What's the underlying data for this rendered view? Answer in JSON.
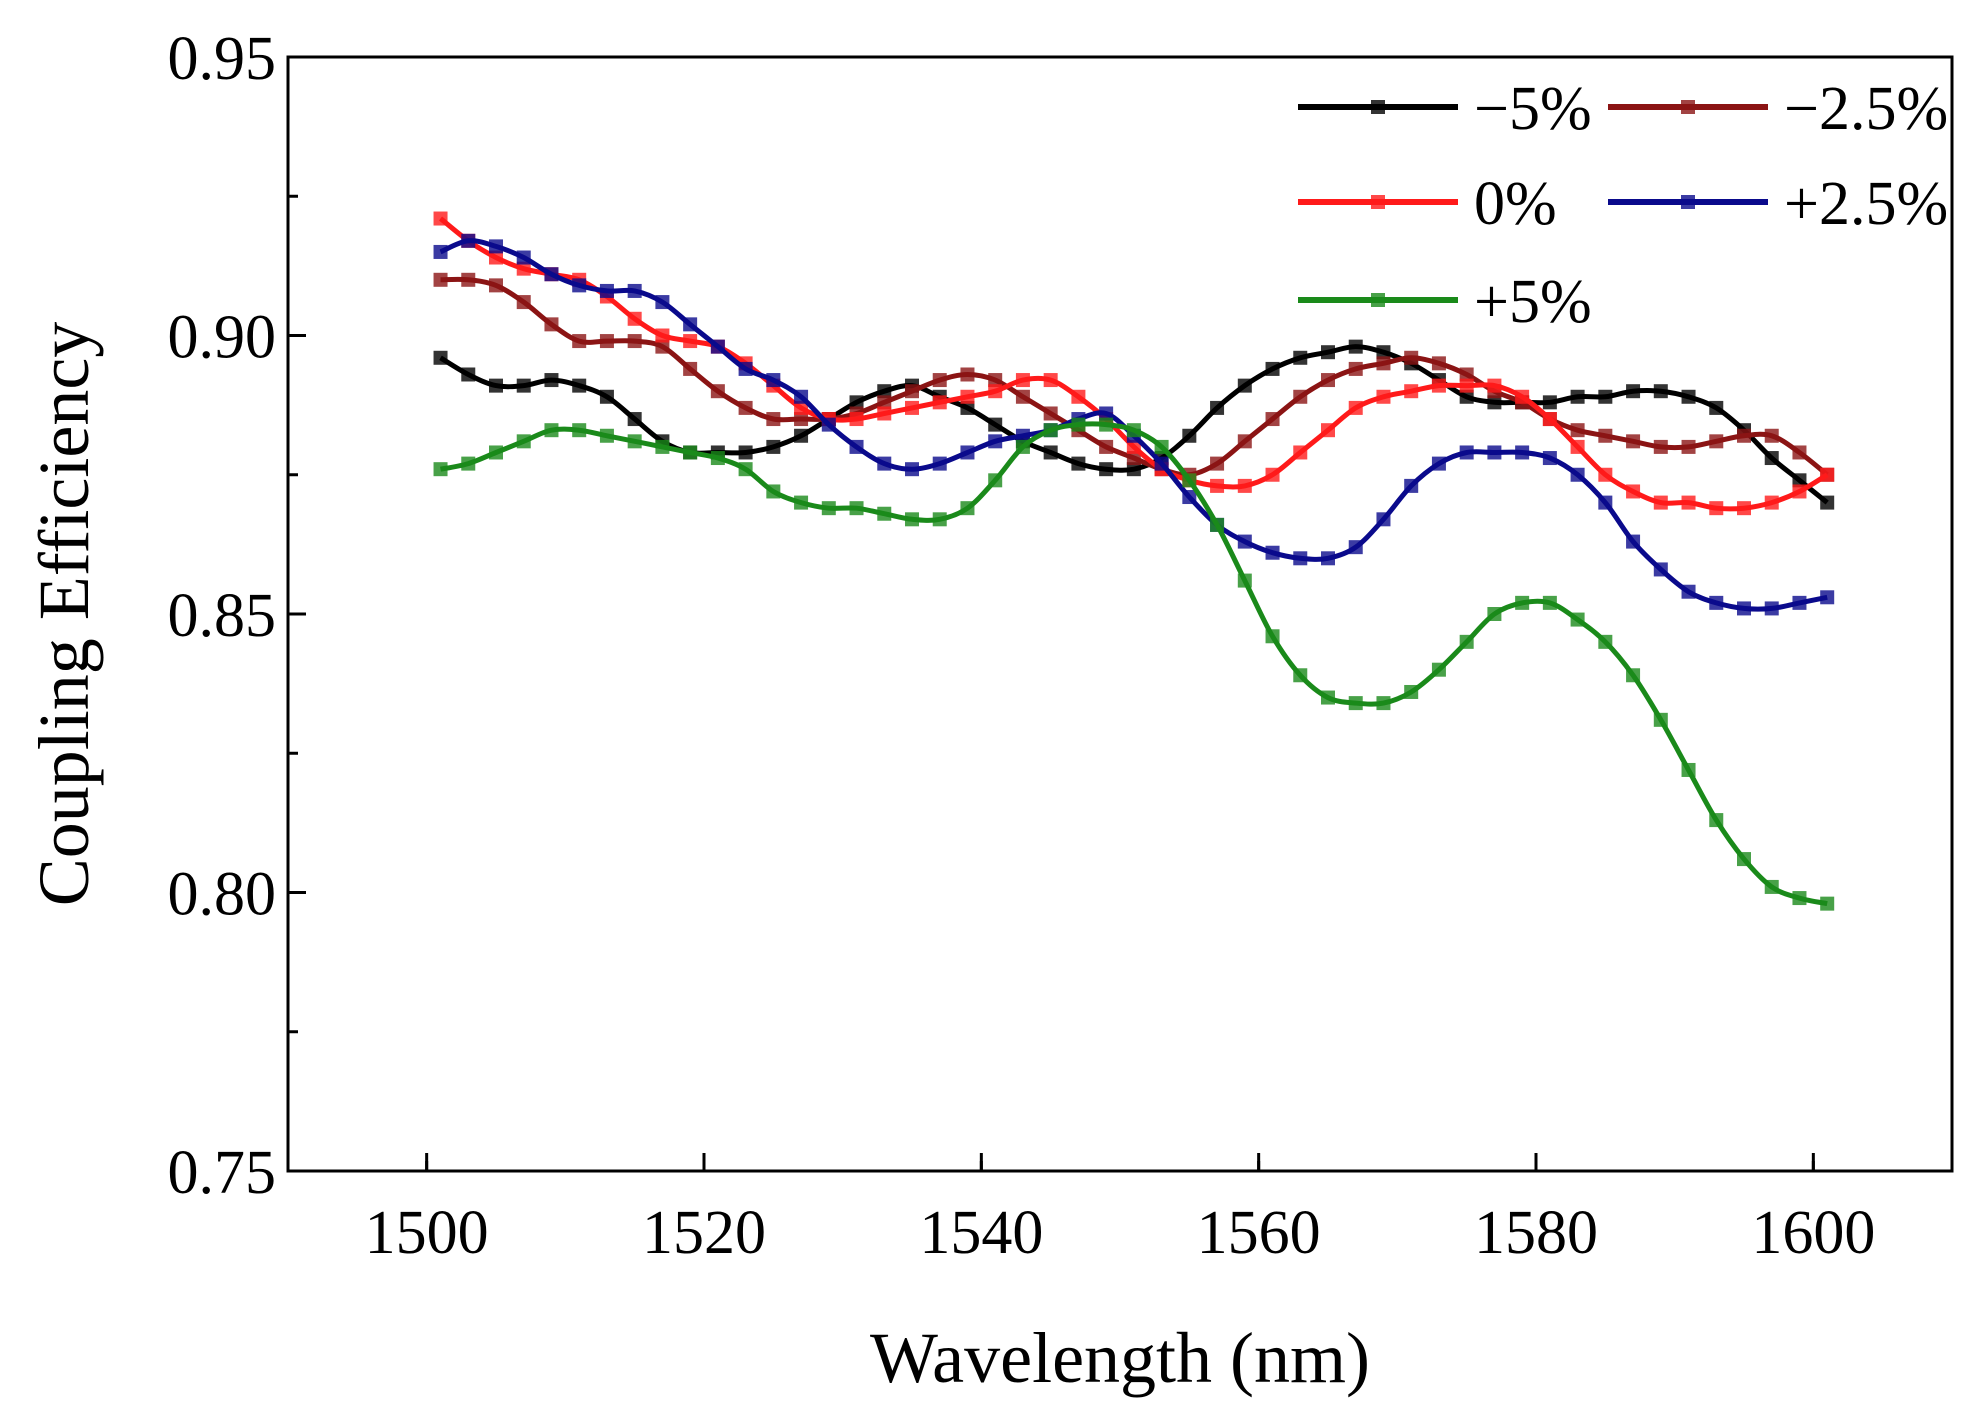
{
  "chart_data": {
    "type": "line",
    "title": "",
    "xlabel": "Wavelength (nm)",
    "ylabel": "Coupling Efficiency",
    "xlim": [
      1490,
      1610
    ],
    "ylim": [
      0.75,
      0.95
    ],
    "xticks": [
      1500,
      1520,
      1540,
      1560,
      1580,
      1600
    ],
    "xtick_labels": [
      "1500",
      "1520",
      "1540",
      "1560",
      "1580",
      "1600"
    ],
    "yticks": [
      0.75,
      0.8,
      0.85,
      0.9,
      0.95
    ],
    "ytick_labels": [
      "0.75",
      "0.80",
      "0.85",
      "0.90",
      "0.95"
    ],
    "grid": false,
    "legend_position": "top-right",
    "x": [
      1501,
      1503,
      1505,
      1507,
      1509,
      1511,
      1513,
      1515,
      1517,
      1519,
      1521,
      1523,
      1525,
      1527,
      1529,
      1531,
      1533,
      1535,
      1537,
      1539,
      1541,
      1543,
      1545,
      1547,
      1549,
      1551,
      1553,
      1555,
      1557,
      1559,
      1561,
      1563,
      1565,
      1567,
      1569,
      1571,
      1573,
      1575,
      1577,
      1579,
      1581,
      1583,
      1585,
      1587,
      1589,
      1591,
      1593,
      1595,
      1597,
      1599,
      1601
    ],
    "series": [
      {
        "name": "−5%",
        "color": "#000000",
        "values": [
          0.896,
          0.893,
          0.891,
          0.891,
          0.892,
          0.891,
          0.889,
          0.885,
          0.881,
          0.879,
          0.879,
          0.879,
          0.88,
          0.882,
          0.885,
          0.888,
          0.89,
          0.891,
          0.889,
          0.887,
          0.884,
          0.881,
          0.879,
          0.877,
          0.876,
          0.876,
          0.878,
          0.882,
          0.887,
          0.891,
          0.894,
          0.896,
          0.897,
          0.898,
          0.897,
          0.895,
          0.892,
          0.889,
          0.888,
          0.888,
          0.888,
          0.889,
          0.889,
          0.89,
          0.89,
          0.889,
          0.887,
          0.883,
          0.878,
          0.874,
          0.87
        ]
      },
      {
        "name": "−2.5%",
        "color": "#8b1414",
        "values": [
          0.91,
          0.91,
          0.909,
          0.906,
          0.902,
          0.899,
          0.899,
          0.899,
          0.898,
          0.894,
          0.89,
          0.887,
          0.885,
          0.885,
          0.885,
          0.886,
          0.888,
          0.89,
          0.892,
          0.893,
          0.892,
          0.889,
          0.886,
          0.883,
          0.88,
          0.878,
          0.876,
          0.875,
          0.877,
          0.881,
          0.885,
          0.889,
          0.892,
          0.894,
          0.895,
          0.896,
          0.895,
          0.893,
          0.89,
          0.888,
          0.885,
          0.883,
          0.882,
          0.881,
          0.88,
          0.88,
          0.881,
          0.882,
          0.882,
          0.879,
          0.875
        ]
      },
      {
        "name": "0%",
        "color": "#ff1a1a",
        "values": [
          0.921,
          0.917,
          0.914,
          0.912,
          0.911,
          0.91,
          0.907,
          0.903,
          0.9,
          0.899,
          0.898,
          0.895,
          0.891,
          0.887,
          0.885,
          0.885,
          0.886,
          0.887,
          0.888,
          0.889,
          0.89,
          0.892,
          0.892,
          0.889,
          0.885,
          0.88,
          0.876,
          0.874,
          0.873,
          0.873,
          0.875,
          0.879,
          0.883,
          0.887,
          0.889,
          0.89,
          0.891,
          0.891,
          0.891,
          0.889,
          0.885,
          0.88,
          0.875,
          0.872,
          0.87,
          0.87,
          0.869,
          0.869,
          0.87,
          0.872,
          0.875
        ]
      },
      {
        "name": "+2.5%",
        "color": "#0a0a8c",
        "values": [
          0.915,
          0.917,
          0.916,
          0.914,
          0.911,
          0.909,
          0.908,
          0.908,
          0.906,
          0.902,
          0.898,
          0.894,
          0.892,
          0.889,
          0.884,
          0.88,
          0.877,
          0.876,
          0.877,
          0.879,
          0.881,
          0.882,
          0.883,
          0.885,
          0.886,
          0.882,
          0.877,
          0.871,
          0.866,
          0.863,
          0.861,
          0.86,
          0.86,
          0.862,
          0.867,
          0.873,
          0.877,
          0.879,
          0.879,
          0.879,
          0.878,
          0.875,
          0.87,
          0.863,
          0.858,
          0.854,
          0.852,
          0.851,
          0.851,
          0.852,
          0.853
        ]
      },
      {
        "name": "+5%",
        "color": "#1a8a1a",
        "values": [
          0.876,
          0.877,
          0.879,
          0.881,
          0.883,
          0.883,
          0.882,
          0.881,
          0.88,
          0.879,
          0.878,
          0.876,
          0.872,
          0.87,
          0.869,
          0.869,
          0.868,
          0.867,
          0.867,
          0.869,
          0.874,
          0.88,
          0.883,
          0.884,
          0.884,
          0.883,
          0.88,
          0.874,
          0.866,
          0.856,
          0.846,
          0.839,
          0.835,
          0.834,
          0.834,
          0.836,
          0.84,
          0.845,
          0.85,
          0.852,
          0.852,
          0.849,
          0.845,
          0.839,
          0.831,
          0.822,
          0.813,
          0.806,
          0.801,
          0.799,
          0.798
        ]
      }
    ]
  }
}
